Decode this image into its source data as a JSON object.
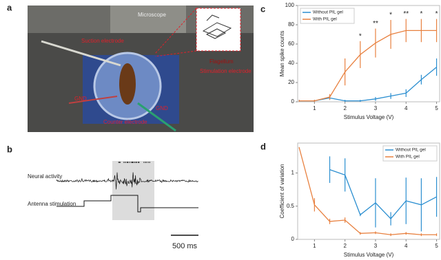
{
  "panels": {
    "a": {
      "label": "a",
      "annotations": [
        "Microscope",
        "Suction electrode",
        "Flagellum",
        "Stimulation electrode",
        "GND",
        "GND",
        "Counter electrode"
      ]
    },
    "b": {
      "label": "b",
      "neural": "Neural activity",
      "stimulation": "Antenna stimulation",
      "scale": "500 ms"
    },
    "c": {
      "label": "c"
    },
    "d": {
      "label": "d"
    }
  },
  "chart_data": [
    {
      "type": "line",
      "x_label": "Stimulus Voltage (V)",
      "y_label": "Mean spike counts",
      "x": [
        0.5,
        1,
        1.5,
        2,
        2.5,
        3,
        3.5,
        4,
        4.5,
        5
      ],
      "series": [
        {
          "name": "Without PIL gel",
          "color": "#2a8ed0",
          "values": [
            1,
            1,
            4,
            1,
            1,
            3,
            6,
            9,
            23,
            36
          ],
          "errors": [
            1,
            1,
            2,
            1,
            1,
            2,
            3,
            4,
            5,
            9
          ]
        },
        {
          "name": "With PIL gel",
          "color": "#e8803f",
          "values": [
            1,
            1,
            5,
            31,
            49,
            61,
            70,
            74,
            74,
            74
          ],
          "errors": [
            1,
            1,
            3,
            14,
            14,
            15,
            15,
            12,
            12,
            12
          ]
        }
      ],
      "annotations": [
        {
          "x": 2.5,
          "text": "*"
        },
        {
          "x": 3,
          "text": "**"
        },
        {
          "x": 3.5,
          "text": "*"
        },
        {
          "x": 4,
          "text": "**"
        },
        {
          "x": 4.5,
          "text": "*"
        },
        {
          "x": 5,
          "text": "*"
        }
      ],
      "xlim": [
        0.45,
        5.1
      ],
      "xticks": [
        1,
        2,
        3,
        4,
        5
      ],
      "ylim": [
        0,
        100
      ],
      "yticks": [
        0,
        20,
        40,
        60,
        80,
        100
      ],
      "legend": "top-left"
    },
    {
      "type": "line",
      "x_label": "Stimulus Voltage (V)",
      "y_label": "Coefficient of variation",
      "x": [
        0.5,
        1,
        1.5,
        2,
        2.5,
        3,
        3.5,
        4,
        4.5,
        5
      ],
      "series": [
        {
          "name": "Without PIL gel",
          "color": "#2a8ed0",
          "values": [
            null,
            null,
            1.05,
            0.97,
            0.37,
            0.55,
            0.31,
            0.58,
            0.52,
            0.64
          ],
          "errors": [
            null,
            null,
            0.2,
            0.25,
            0.02,
            0.37,
            0.1,
            0.35,
            0.4,
            0.3
          ]
        },
        {
          "name": "With PIL gel",
          "color": "#e8803f",
          "values": [
            1.38,
            0.52,
            0.27,
            0.29,
            0.09,
            0.1,
            0.07,
            0.09,
            0.07,
            0.07
          ],
          "errors": [
            0.01,
            0.1,
            0.04,
            0.04,
            0.02,
            0.02,
            0.02,
            0.02,
            0.02,
            0.02
          ]
        }
      ],
      "xlim": [
        0.45,
        5.1
      ],
      "xticks": [
        1,
        2,
        3,
        4,
        5
      ],
      "ylim": [
        0,
        1.45
      ],
      "yticks": [
        0,
        0.5,
        1
      ],
      "legend": "top-right"
    }
  ]
}
